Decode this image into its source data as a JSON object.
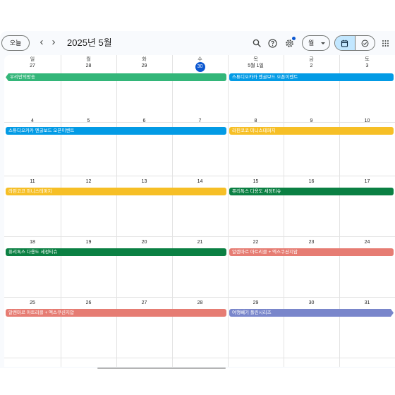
{
  "toolbar": {
    "today_label": "오늘",
    "prev_icon": "chevron-left-icon",
    "next_icon": "chevron-right-icon",
    "title": "2025년 5월",
    "view_label": "월",
    "calendar_view_icon": "calendar-icon",
    "tasks_view_icon": "check-circle-icon"
  },
  "weekdays": [
    "일",
    "월",
    "화",
    "수",
    "목",
    "금",
    "토"
  ],
  "weeks": [
    {
      "days": [
        "27",
        "28",
        "29",
        "30",
        "5월 1일",
        "2",
        "3"
      ],
      "events": [
        {
          "title": "우리만의방송",
          "color": "#33b679",
          "start_col": 0,
          "span": 4,
          "continued": true
        },
        {
          "title": "스튜디오카카 엔굴보드 오픈이벤트",
          "color": "#039be5",
          "start_col": 4,
          "span": 3
        }
      ]
    },
    {
      "days": [
        "4",
        "5",
        "6",
        "7",
        "8",
        "9",
        "10"
      ],
      "events": [
        {
          "title": "스튜디오카카 엔굴보드 오픈이벤트",
          "color": "#039be5",
          "start_col": 0,
          "span": 4
        },
        {
          "title": "라핀코코 미니스테퍼지",
          "color": "#f6bf26",
          "start_col": 4,
          "span": 3
        }
      ]
    },
    {
      "days": [
        "11",
        "12",
        "13",
        "14",
        "15",
        "16",
        "17"
      ],
      "events": [
        {
          "title": "라핀코코 미니스테퍼지",
          "color": "#f6bf26",
          "start_col": 0,
          "span": 4
        },
        {
          "title": "퓨리톡스 다용도 세정티슈",
          "color": "#0b8043",
          "start_col": 4,
          "span": 3
        }
      ]
    },
    {
      "days": [
        "18",
        "19",
        "20",
        "21",
        "22",
        "23",
        "24"
      ],
      "events": [
        {
          "title": "퓨리톡스 다용도 세정티슈",
          "color": "#0b8043",
          "start_col": 0,
          "span": 4
        },
        {
          "title": "알렌마르 아트리클 + 엑스쿠션지압",
          "color": "#e67c73",
          "start_col": 4,
          "span": 3
        }
      ]
    },
    {
      "days": [
        "25",
        "26",
        "27",
        "28",
        "29",
        "30",
        "31"
      ],
      "events": [
        {
          "title": "알렌마르 아트리클 + 엑스쿠션지압",
          "color": "#e67c73",
          "start_col": 0,
          "span": 4
        },
        {
          "title": "여행빼기 폴린시리즈",
          "color": "#7986cb",
          "start_col": 4,
          "span": 3,
          "continues": true
        }
      ]
    }
  ],
  "today_label": "30",
  "colors": {
    "accent": "#0b57d0",
    "selected_view_bg": "#c2e7ff",
    "gridline": "#e3e3e3"
  }
}
